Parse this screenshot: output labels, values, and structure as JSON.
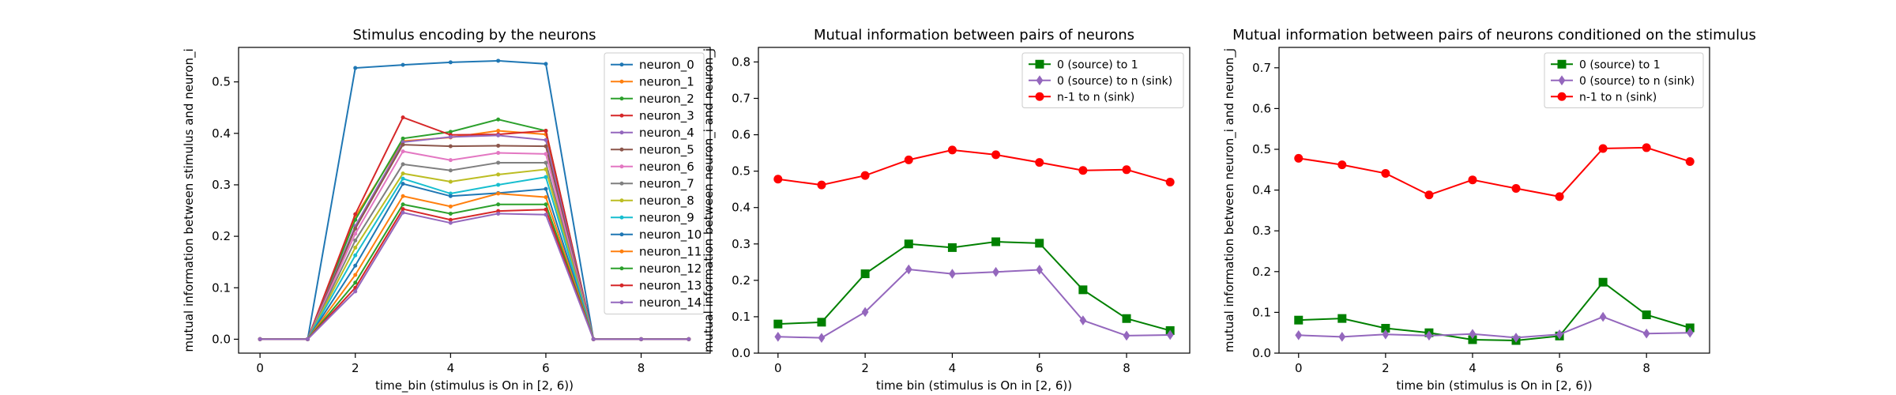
{
  "chart_data": [
    {
      "type": "line",
      "title": "Stimulus encoding by the neurons",
      "xlabel": "time_bin (stimulus is On in [2, 6))",
      "ylabel": "mutual information between stimulus and neuron_i",
      "xlim": [
        -0.45,
        9.45
      ],
      "ylim": [
        -0.027,
        0.567
      ],
      "xticks": [
        0,
        2,
        4,
        6,
        8
      ],
      "yticks": [
        0.0,
        0.1,
        0.2,
        0.3,
        0.4,
        0.5
      ],
      "ytick_labels": [
        "0.0",
        "0.1",
        "0.2",
        "0.3",
        "0.4",
        "0.5"
      ],
      "grid": false,
      "legend_position": "top-right",
      "x": [
        0,
        1,
        2,
        3,
        4,
        5,
        6,
        7,
        8,
        9
      ],
      "series": [
        {
          "name": "neuron_0",
          "color": "#1f77b4",
          "marker": "dot",
          "values": [
            0.0,
            0.0,
            0.527,
            0.533,
            0.538,
            0.541,
            0.535,
            0.0,
            0.0,
            0.0
          ]
        },
        {
          "name": "neuron_1",
          "color": "#ff7f0e",
          "marker": "dot",
          "values": [
            0.0,
            0.0,
            0.238,
            0.385,
            0.392,
            0.405,
            0.398,
            0.0,
            0.0,
            0.0
          ]
        },
        {
          "name": "neuron_2",
          "color": "#2ca02c",
          "marker": "dot",
          "values": [
            0.0,
            0.0,
            0.232,
            0.39,
            0.403,
            0.427,
            0.405,
            0.0,
            0.0,
            0.0
          ]
        },
        {
          "name": "neuron_3",
          "color": "#d62728",
          "marker": "dot",
          "values": [
            0.0,
            0.0,
            0.243,
            0.431,
            0.397,
            0.398,
            0.405,
            0.0,
            0.0,
            0.0
          ]
        },
        {
          "name": "neuron_4",
          "color": "#9467bd",
          "marker": "dot",
          "values": [
            0.0,
            0.0,
            0.22,
            0.383,
            0.393,
            0.396,
            0.387,
            0.0,
            0.0,
            0.0
          ]
        },
        {
          "name": "neuron_5",
          "color": "#8c564b",
          "marker": "dot",
          "values": [
            0.0,
            0.0,
            0.215,
            0.378,
            0.375,
            0.376,
            0.375,
            0.0,
            0.0,
            0.0
          ]
        },
        {
          "name": "neuron_6",
          "color": "#e377c2",
          "marker": "dot",
          "values": [
            0.0,
            0.0,
            0.205,
            0.365,
            0.348,
            0.362,
            0.36,
            0.0,
            0.0,
            0.0
          ]
        },
        {
          "name": "neuron_7",
          "color": "#7f7f7f",
          "marker": "dot",
          "values": [
            0.0,
            0.0,
            0.192,
            0.34,
            0.328,
            0.343,
            0.343,
            0.0,
            0.0,
            0.0
          ]
        },
        {
          "name": "neuron_8",
          "color": "#bcbd22",
          "marker": "dot",
          "values": [
            0.0,
            0.0,
            0.178,
            0.322,
            0.306,
            0.32,
            0.33,
            0.0,
            0.0,
            0.0
          ]
        },
        {
          "name": "neuron_9",
          "color": "#17becf",
          "marker": "dot",
          "values": [
            0.0,
            0.0,
            0.163,
            0.312,
            0.283,
            0.3,
            0.315,
            0.0,
            0.0,
            0.0
          ]
        },
        {
          "name": "neuron_10",
          "color": "#1f77b4",
          "marker": "dot",
          "values": [
            0.0,
            0.0,
            0.143,
            0.302,
            0.278,
            0.284,
            0.292,
            0.0,
            0.0,
            0.0
          ]
        },
        {
          "name": "neuron_11",
          "color": "#ff7f0e",
          "marker": "dot",
          "values": [
            0.0,
            0.0,
            0.125,
            0.278,
            0.258,
            0.283,
            0.276,
            0.0,
            0.0,
            0.0
          ]
        },
        {
          "name": "neuron_12",
          "color": "#2ca02c",
          "marker": "dot",
          "values": [
            0.0,
            0.0,
            0.11,
            0.262,
            0.244,
            0.262,
            0.262,
            0.0,
            0.0,
            0.0
          ]
        },
        {
          "name": "neuron_13",
          "color": "#d62728",
          "marker": "dot",
          "values": [
            0.0,
            0.0,
            0.1,
            0.253,
            0.232,
            0.249,
            0.252,
            0.0,
            0.0,
            0.0
          ]
        },
        {
          "name": "neuron_14",
          "color": "#9467bd",
          "marker": "dot",
          "values": [
            0.0,
            0.0,
            0.093,
            0.246,
            0.226,
            0.244,
            0.242,
            0.0,
            0.0,
            0.0
          ]
        }
      ]
    },
    {
      "type": "line",
      "title": "Mutual information between pairs of neurons",
      "xlabel": "time bin (stimulus is On in [2, 6))",
      "ylabel": "mutual information between neuron_i and neuron_j",
      "xlim": [
        -0.45,
        9.45
      ],
      "ylim": [
        0.0,
        0.84
      ],
      "xticks": [
        0,
        2,
        4,
        6,
        8
      ],
      "yticks": [
        0.0,
        0.1,
        0.2,
        0.3,
        0.4,
        0.5,
        0.6,
        0.7,
        0.8
      ],
      "ytick_labels": [
        "0.0",
        "0.1",
        "0.2",
        "0.3",
        "0.4",
        "0.5",
        "0.6",
        "0.7",
        "0.8"
      ],
      "grid": false,
      "legend_position": "top-right",
      "x": [
        0,
        1,
        2,
        3,
        4,
        5,
        6,
        7,
        8,
        9
      ],
      "series": [
        {
          "name": "0 (source) to 1",
          "color": "#008000",
          "marker": "square",
          "values": [
            0.08,
            0.085,
            0.218,
            0.3,
            0.29,
            0.306,
            0.302,
            0.174,
            0.095,
            0.062
          ]
        },
        {
          "name": "0 (source) to n (sink)",
          "color": "#9467bd",
          "marker": "diamond",
          "values": [
            0.045,
            0.042,
            0.113,
            0.23,
            0.218,
            0.223,
            0.229,
            0.09,
            0.048,
            0.05
          ]
        },
        {
          "name": "n-1 to n (sink)",
          "color": "#ff0000",
          "marker": "circle",
          "values": [
            0.478,
            0.462,
            0.488,
            0.531,
            0.558,
            0.545,
            0.524,
            0.502,
            0.504,
            0.47
          ]
        }
      ]
    },
    {
      "type": "line",
      "title": "Mutual information between pairs of neurons conditioned on the stimulus",
      "xlabel": "time bin (stimulus is On in [2, 6))",
      "ylabel": "mutual information between neuron_i and neuron_j",
      "xlim": [
        -0.45,
        9.45
      ],
      "ylim": [
        0.0,
        0.75
      ],
      "xticks": [
        0,
        2,
        4,
        6,
        8
      ],
      "yticks": [
        0.0,
        0.1,
        0.2,
        0.3,
        0.4,
        0.5,
        0.6,
        0.7
      ],
      "ytick_labels": [
        "0.0",
        "0.1",
        "0.2",
        "0.3",
        "0.4",
        "0.5",
        "0.6",
        "0.7"
      ],
      "grid": false,
      "legend_position": "top-right",
      "x": [
        0,
        1,
        2,
        3,
        4,
        5,
        6,
        7,
        8,
        9
      ],
      "series": [
        {
          "name": "0 (source) to 1",
          "color": "#008000",
          "marker": "square",
          "values": [
            0.081,
            0.085,
            0.061,
            0.05,
            0.033,
            0.031,
            0.042,
            0.174,
            0.094,
            0.062
          ]
        },
        {
          "name": "0 (source) to n (sink)",
          "color": "#9467bd",
          "marker": "diamond",
          "values": [
            0.044,
            0.04,
            0.046,
            0.043,
            0.047,
            0.038,
            0.046,
            0.089,
            0.048,
            0.05
          ]
        },
        {
          "name": "n-1 to n (sink)",
          "color": "#ff0000",
          "marker": "circle",
          "values": [
            0.478,
            0.462,
            0.441,
            0.388,
            0.425,
            0.404,
            0.384,
            0.502,
            0.504,
            0.47
          ]
        }
      ]
    }
  ]
}
